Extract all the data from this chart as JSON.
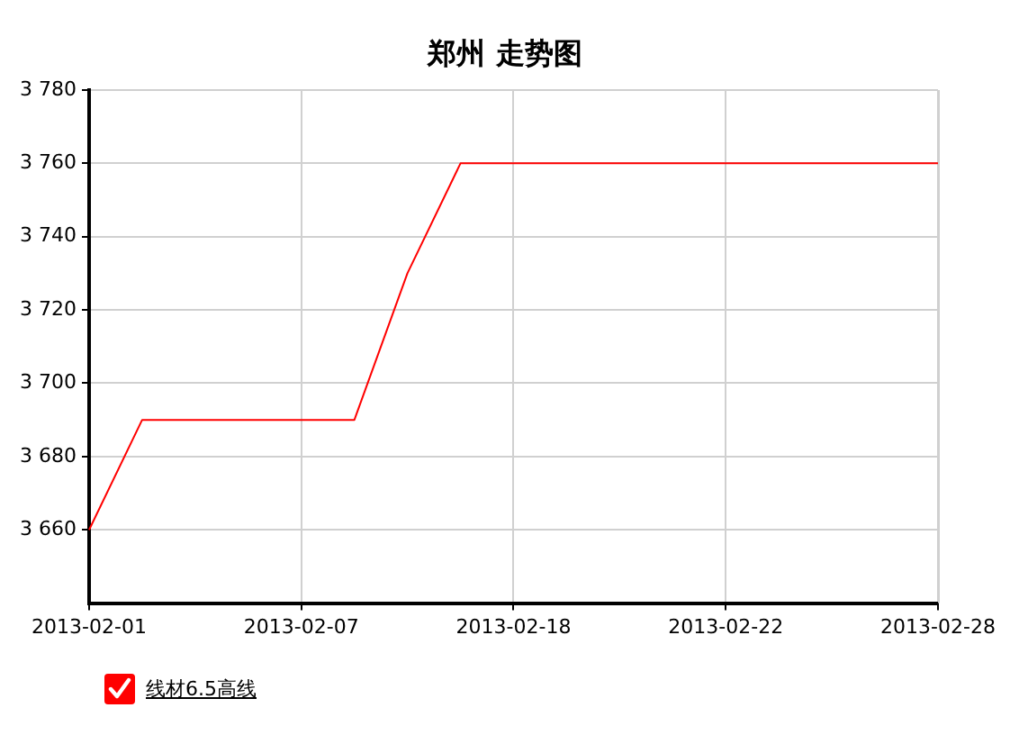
{
  "chart_data": {
    "type": "line",
    "title": "郑州 走势图",
    "categories": [
      "2013-02-01",
      null,
      null,
      null,
      "2013-02-07",
      null,
      null,
      null,
      "2013-02-18",
      null,
      null,
      null,
      "2013-02-22",
      null,
      null,
      null,
      "2013-02-28"
    ],
    "series": [
      {
        "name": "线材6.5高线",
        "color": "#ff0000",
        "values": [
          3660,
          3690,
          3690,
          3690,
          3690,
          3690,
          3730,
          3760,
          3760,
          3760,
          3760,
          3760,
          3760,
          3760,
          3760,
          3760,
          3760
        ]
      }
    ],
    "ylim": [
      3640,
      3780
    ],
    "yticks": [
      {
        "value": 3660,
        "label": "3 660"
      },
      {
        "value": 3680,
        "label": "3 680"
      },
      {
        "value": 3700,
        "label": "3 700"
      },
      {
        "value": 3720,
        "label": "3 720"
      },
      {
        "value": 3740,
        "label": "3 740"
      },
      {
        "value": 3760,
        "label": "3 760"
      },
      {
        "value": 3780,
        "label": "3 780"
      }
    ],
    "grid": true,
    "legend": "bottom left",
    "marker": "none",
    "line_style": "solid"
  }
}
